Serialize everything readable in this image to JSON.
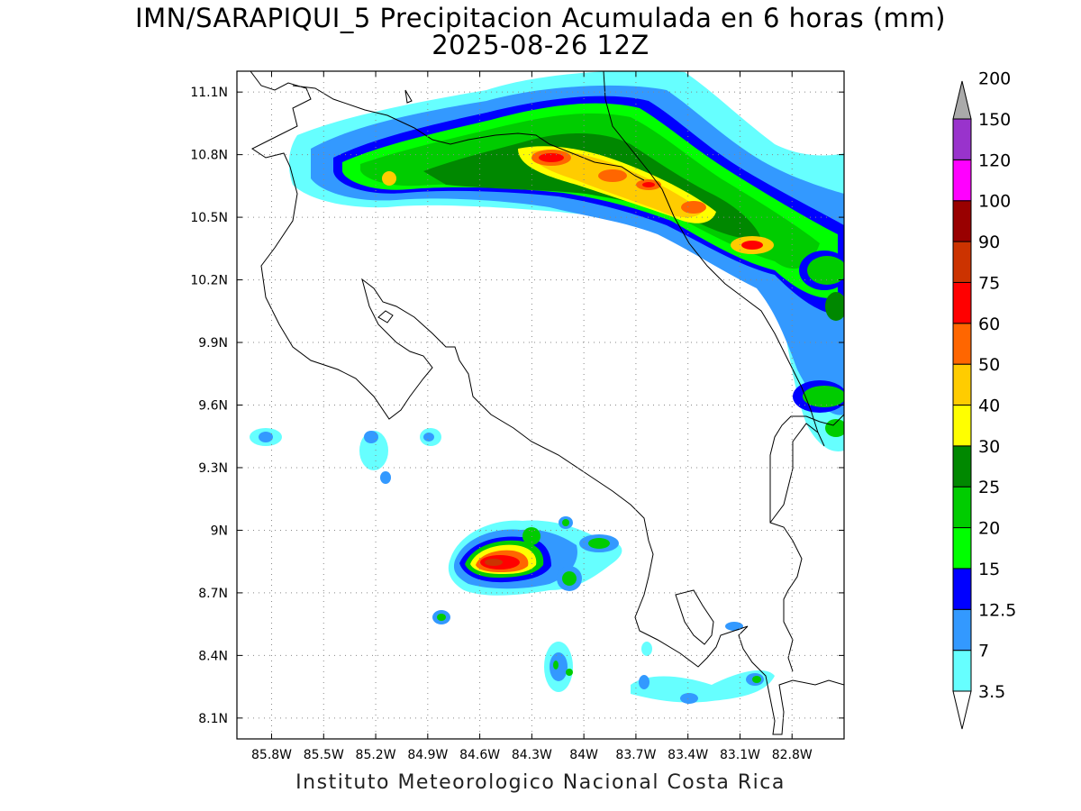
{
  "header": {
    "title_line1": "IMN/SARAPIQUI_5 Precipitacion Acumulada en 6 horas (mm)",
    "title_line2": "2025-08-26 12Z"
  },
  "footer": {
    "credit": "Instituto Meteorologico Nacional Costa Rica"
  },
  "map": {
    "lon_range": [
      -86.0,
      -82.5
    ],
    "lat_range": [
      8.0,
      11.2
    ],
    "gridlines": "dotted",
    "lon_ticks": [
      {
        "value": -85.8,
        "label": "85.8W"
      },
      {
        "value": -85.5,
        "label": "85.5W"
      },
      {
        "value": -85.2,
        "label": "85.2W"
      },
      {
        "value": -84.9,
        "label": "84.9W"
      },
      {
        "value": -84.6,
        "label": "84.6W"
      },
      {
        "value": -84.3,
        "label": "84.3W"
      },
      {
        "value": -84.0,
        "label": "84W"
      },
      {
        "value": -83.7,
        "label": "83.7W"
      },
      {
        "value": -83.4,
        "label": "83.4W"
      },
      {
        "value": -83.1,
        "label": "83.1W"
      },
      {
        "value": -82.8,
        "label": "82.8W"
      }
    ],
    "lat_ticks": [
      {
        "value": 11.1,
        "label": "11.1N"
      },
      {
        "value": 10.8,
        "label": "10.8N"
      },
      {
        "value": 10.5,
        "label": "10.5N"
      },
      {
        "value": 10.2,
        "label": "10.2N"
      },
      {
        "value": 9.9,
        "label": "9.9N"
      },
      {
        "value": 9.6,
        "label": "9.6N"
      },
      {
        "value": 9.3,
        "label": "9.3N"
      },
      {
        "value": 9.0,
        "label": "9N"
      },
      {
        "value": 8.7,
        "label": "8.7N"
      },
      {
        "value": 8.4,
        "label": "8.4N"
      },
      {
        "value": 8.1,
        "label": "8.1N"
      }
    ]
  },
  "colorbar": {
    "levels": [
      "3.5",
      "7",
      "12.5",
      "15",
      "20",
      "25",
      "30",
      "40",
      "50",
      "60",
      "75",
      "90",
      "100",
      "120",
      "150",
      "200"
    ],
    "colors": [
      "#66ffff",
      "#3399ff",
      "#0000ff",
      "#00ff00",
      "#00cc00",
      "#008800",
      "#ffff00",
      "#ffcc00",
      "#ff6600",
      "#ff0000",
      "#cc3300",
      "#990000",
      "#ff00ff",
      "#9933cc",
      "#f5f5f5",
      "#aaaaaa"
    ]
  }
}
